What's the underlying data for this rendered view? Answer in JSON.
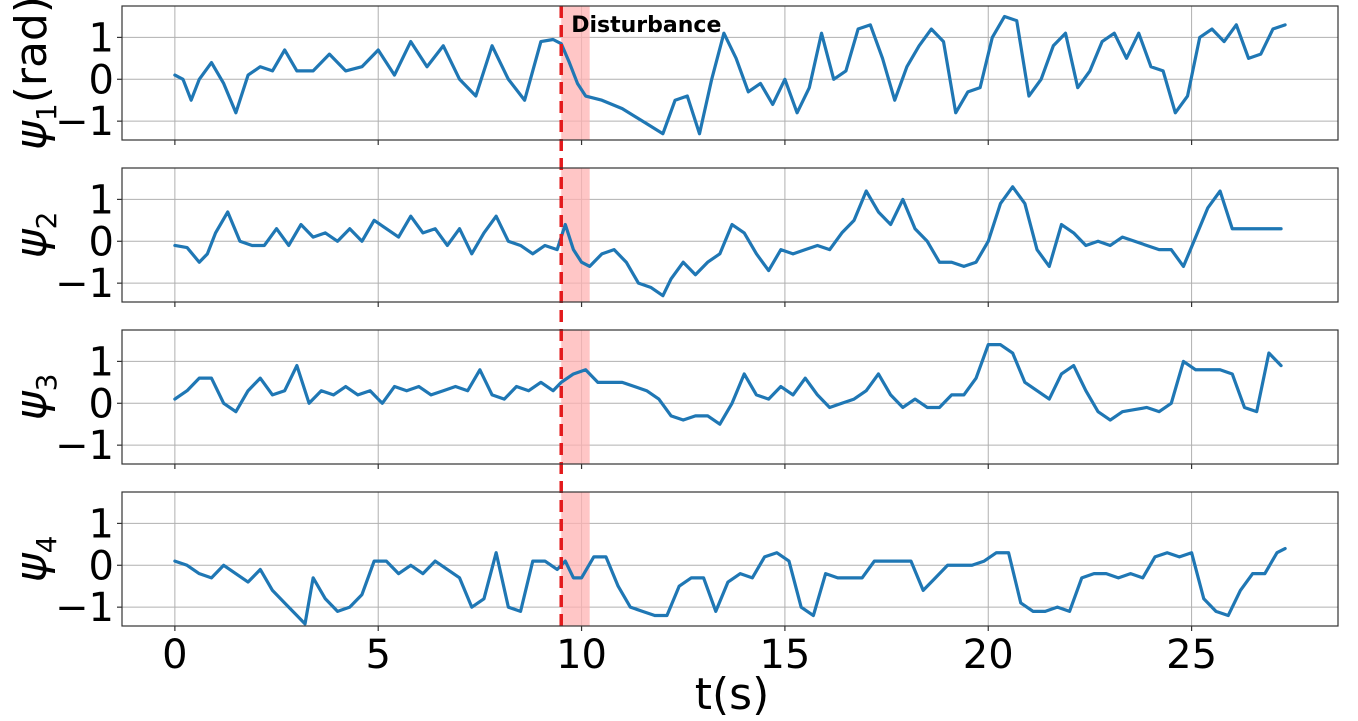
{
  "chart_data": {
    "type": "line",
    "xlabel": "t(s)",
    "xlim": [
      -1.3,
      28.6
    ],
    "x_ticks": [
      0,
      5,
      10,
      15,
      20,
      25
    ],
    "ylim": [
      -1.45,
      1.75
    ],
    "y_ticks": [
      -1,
      0,
      1
    ],
    "grid": true,
    "line_color": "#1f77b4",
    "event": {
      "label": "Disturbance",
      "time": 9.5,
      "shade_start": 9.5,
      "shade_end": 10.2,
      "line_color": "#e31a1c",
      "shade_color": "#ffb3b3"
    },
    "panels": [
      {
        "ylabel_symbol": "ψ",
        "ylabel_sub": "1",
        "ylabel_unit": "(rad)",
        "series": {
          "name": "psi1",
          "x": [
            0,
            0.2,
            0.4,
            0.6,
            0.9,
            1.2,
            1.5,
            1.8,
            2.1,
            2.4,
            2.7,
            3.0,
            3.4,
            3.8,
            4.2,
            4.6,
            5.0,
            5.4,
            5.8,
            6.2,
            6.6,
            7.0,
            7.4,
            7.8,
            8.2,
            8.6,
            9.0,
            9.3,
            9.5,
            9.7,
            9.9,
            10.1,
            10.5,
            11.0,
            11.5,
            12.0,
            12.3,
            12.6,
            12.9,
            13.2,
            13.5,
            13.8,
            14.1,
            14.4,
            14.7,
            15.0,
            15.3,
            15.6,
            15.9,
            16.2,
            16.5,
            16.8,
            17.1,
            17.4,
            17.7,
            18.0,
            18.3,
            18.6,
            18.9,
            19.2,
            19.5,
            19.8,
            20.1,
            20.4,
            20.7,
            21.0,
            21.3,
            21.6,
            21.9,
            22.2,
            22.5,
            22.8,
            23.1,
            23.4,
            23.7,
            24.0,
            24.3,
            24.6,
            24.9,
            25.2,
            25.5,
            25.8,
            26.1,
            26.4,
            26.7,
            27.0,
            27.3
          ],
          "y": [
            0.1,
            0.0,
            -0.5,
            0.0,
            0.4,
            -0.1,
            -0.8,
            0.1,
            0.3,
            0.2,
            0.7,
            0.2,
            0.2,
            0.6,
            0.2,
            0.3,
            0.7,
            0.1,
            0.9,
            0.3,
            0.8,
            0.0,
            -0.4,
            0.8,
            0.0,
            -0.5,
            0.9,
            0.95,
            0.85,
            0.4,
            -0.1,
            -0.4,
            -0.5,
            -0.7,
            -1.0,
            -1.3,
            -0.5,
            -0.4,
            -1.3,
            0.0,
            1.1,
            0.5,
            -0.3,
            -0.1,
            -0.6,
            0.0,
            -0.8,
            -0.2,
            1.1,
            0.0,
            0.2,
            1.2,
            1.3,
            0.5,
            -0.5,
            0.3,
            0.8,
            1.2,
            0.9,
            -0.8,
            -0.3,
            -0.2,
            1.0,
            1.5,
            1.4,
            -0.4,
            0.0,
            0.8,
            1.1,
            -0.2,
            0.2,
            0.9,
            1.1,
            0.5,
            1.1,
            0.3,
            0.2,
            -0.8,
            -0.4,
            1.0,
            1.2,
            0.9,
            1.3,
            0.5,
            0.6,
            1.2,
            1.3
          ]
        }
      },
      {
        "ylabel_symbol": "ψ",
        "ylabel_sub": "2",
        "ylabel_unit": "",
        "series": {
          "name": "psi2",
          "x": [
            0,
            0.3,
            0.6,
            0.8,
            1.0,
            1.3,
            1.6,
            1.9,
            2.2,
            2.5,
            2.8,
            3.1,
            3.4,
            3.7,
            4.0,
            4.3,
            4.6,
            4.9,
            5.2,
            5.5,
            5.8,
            6.1,
            6.4,
            6.7,
            7.0,
            7.3,
            7.6,
            7.9,
            8.2,
            8.5,
            8.8,
            9.1,
            9.4,
            9.6,
            9.8,
            10.0,
            10.2,
            10.5,
            10.8,
            11.1,
            11.4,
            11.7,
            12.0,
            12.2,
            12.5,
            12.8,
            13.1,
            13.4,
            13.7,
            14.0,
            14.3,
            14.6,
            14.9,
            15.2,
            15.5,
            15.8,
            16.1,
            16.4,
            16.7,
            17.0,
            17.3,
            17.6,
            17.9,
            18.2,
            18.5,
            18.8,
            19.1,
            19.4,
            19.7,
            20.0,
            20.3,
            20.6,
            20.9,
            21.2,
            21.5,
            21.8,
            22.1,
            22.4,
            22.7,
            23.0,
            23.3,
            23.6,
            23.9,
            24.2,
            24.5,
            24.8,
            25.1,
            25.4,
            25.7,
            26.0,
            26.3,
            26.6,
            26.9,
            27.2
          ],
          "y": [
            -0.1,
            -0.15,
            -0.5,
            -0.3,
            0.2,
            0.7,
            0.0,
            -0.1,
            -0.1,
            0.3,
            -0.1,
            0.4,
            0.1,
            0.2,
            0.0,
            0.3,
            0.0,
            0.5,
            0.3,
            0.1,
            0.6,
            0.2,
            0.3,
            -0.1,
            0.3,
            -0.3,
            0.2,
            0.6,
            0.0,
            -0.1,
            -0.3,
            -0.1,
            -0.2,
            0.4,
            -0.2,
            -0.5,
            -0.6,
            -0.3,
            -0.2,
            -0.5,
            -1.0,
            -1.1,
            -1.3,
            -0.9,
            -0.5,
            -0.8,
            -0.5,
            -0.3,
            0.4,
            0.2,
            -0.3,
            -0.7,
            -0.2,
            -0.3,
            -0.2,
            -0.1,
            -0.2,
            0.2,
            0.5,
            1.2,
            0.7,
            0.4,
            1.0,
            0.3,
            0.0,
            -0.5,
            -0.5,
            -0.6,
            -0.5,
            0.0,
            0.9,
            1.3,
            0.9,
            -0.2,
            -0.6,
            0.4,
            0.2,
            -0.1,
            0.0,
            -0.1,
            0.1,
            0.0,
            -0.1,
            -0.2,
            -0.2,
            -0.6,
            0.1,
            0.8,
            1.2,
            0.3,
            0.3,
            0.3,
            0.3,
            0.3
          ]
        }
      },
      {
        "ylabel_symbol": "ψ",
        "ylabel_sub": "3",
        "ylabel_unit": "",
        "series": {
          "name": "psi3",
          "x": [
            0,
            0.3,
            0.6,
            0.9,
            1.2,
            1.5,
            1.8,
            2.1,
            2.4,
            2.7,
            3.0,
            3.3,
            3.6,
            3.9,
            4.2,
            4.5,
            4.8,
            5.1,
            5.4,
            5.7,
            6.0,
            6.3,
            6.6,
            6.9,
            7.2,
            7.5,
            7.8,
            8.1,
            8.4,
            8.7,
            9.0,
            9.3,
            9.5,
            9.8,
            10.1,
            10.4,
            10.7,
            11.0,
            11.3,
            11.6,
            11.9,
            12.2,
            12.5,
            12.8,
            13.1,
            13.4,
            13.7,
            14.0,
            14.3,
            14.6,
            14.9,
            15.2,
            15.5,
            15.8,
            16.1,
            16.4,
            16.7,
            17.0,
            17.3,
            17.6,
            17.9,
            18.2,
            18.5,
            18.8,
            19.1,
            19.4,
            19.7,
            20.0,
            20.3,
            20.6,
            20.9,
            21.2,
            21.5,
            21.8,
            22.1,
            22.4,
            22.7,
            23.0,
            23.3,
            23.6,
            23.9,
            24.2,
            24.5,
            24.8,
            25.1,
            25.4,
            25.7,
            26.0,
            26.3,
            26.6,
            26.9,
            27.2
          ],
          "y": [
            0.1,
            0.3,
            0.6,
            0.6,
            0.0,
            -0.2,
            0.3,
            0.6,
            0.2,
            0.3,
            0.9,
            0.0,
            0.3,
            0.2,
            0.4,
            0.2,
            0.3,
            0.0,
            0.4,
            0.3,
            0.4,
            0.2,
            0.3,
            0.4,
            0.3,
            0.8,
            0.2,
            0.1,
            0.4,
            0.3,
            0.5,
            0.3,
            0.5,
            0.7,
            0.8,
            0.5,
            0.5,
            0.5,
            0.4,
            0.3,
            0.1,
            -0.3,
            -0.4,
            -0.3,
            -0.3,
            -0.5,
            0.0,
            0.7,
            0.2,
            0.1,
            0.4,
            0.2,
            0.6,
            0.2,
            -0.1,
            0.0,
            0.1,
            0.3,
            0.7,
            0.2,
            -0.1,
            0.1,
            -0.1,
            -0.1,
            0.2,
            0.2,
            0.6,
            1.4,
            1.4,
            1.2,
            0.5,
            0.3,
            0.1,
            0.7,
            0.9,
            0.3,
            -0.2,
            -0.4,
            -0.2,
            -0.15,
            -0.1,
            -0.2,
            0.0,
            1.0,
            0.8,
            0.8,
            0.8,
            0.7,
            -0.1,
            -0.2,
            1.2,
            0.9
          ]
        }
      },
      {
        "ylabel_symbol": "ψ",
        "ylabel_sub": "4",
        "ylabel_unit": "",
        "series": {
          "name": "psi4",
          "x": [
            0,
            0.3,
            0.6,
            0.9,
            1.2,
            1.5,
            1.8,
            2.1,
            2.4,
            2.7,
            3.0,
            3.2,
            3.4,
            3.7,
            4.0,
            4.3,
            4.6,
            4.9,
            5.2,
            5.5,
            5.8,
            6.1,
            6.4,
            6.7,
            7.0,
            7.3,
            7.6,
            7.9,
            8.2,
            8.5,
            8.8,
            9.1,
            9.4,
            9.6,
            9.8,
            10.0,
            10.3,
            10.6,
            10.9,
            11.2,
            11.5,
            11.8,
            12.1,
            12.4,
            12.7,
            13.0,
            13.3,
            13.6,
            13.9,
            14.2,
            14.5,
            14.8,
            15.1,
            15.4,
            15.7,
            16.0,
            16.3,
            16.6,
            16.9,
            17.2,
            17.5,
            17.8,
            18.1,
            18.4,
            18.7,
            19.0,
            19.3,
            19.6,
            19.9,
            20.2,
            20.5,
            20.8,
            21.1,
            21.4,
            21.7,
            22.0,
            22.3,
            22.6,
            22.9,
            23.2,
            23.5,
            23.8,
            24.1,
            24.4,
            24.7,
            25.0,
            25.3,
            25.6,
            25.9,
            26.2,
            26.5,
            26.8,
            27.1,
            27.3
          ],
          "y": [
            0.1,
            0.0,
            -0.2,
            -0.3,
            0.0,
            -0.2,
            -0.4,
            -0.1,
            -0.6,
            -0.9,
            -1.2,
            -1.4,
            -0.3,
            -0.8,
            -1.1,
            -1.0,
            -0.7,
            0.1,
            0.1,
            -0.2,
            0.0,
            -0.2,
            0.1,
            -0.1,
            -0.3,
            -1.0,
            -0.8,
            0.3,
            -1.0,
            -1.1,
            0.1,
            0.1,
            -0.1,
            0.1,
            -0.3,
            -0.3,
            0.2,
            0.2,
            -0.5,
            -1.0,
            -1.1,
            -1.2,
            -1.2,
            -0.5,
            -0.3,
            -0.3,
            -1.1,
            -0.4,
            -0.2,
            -0.3,
            0.2,
            0.3,
            0.1,
            -1.0,
            -1.2,
            -0.2,
            -0.3,
            -0.3,
            -0.3,
            0.1,
            0.1,
            0.1,
            0.1,
            -0.6,
            -0.3,
            0.0,
            0.0,
            0.0,
            0.1,
            0.3,
            0.3,
            -0.9,
            -1.1,
            -1.1,
            -1.0,
            -1.1,
            -0.3,
            -0.2,
            -0.2,
            -0.3,
            -0.2,
            -0.3,
            0.2,
            0.3,
            0.2,
            0.3,
            -0.8,
            -1.1,
            -1.2,
            -0.6,
            -0.2,
            -0.2,
            0.3,
            0.4
          ]
        }
      }
    ]
  }
}
